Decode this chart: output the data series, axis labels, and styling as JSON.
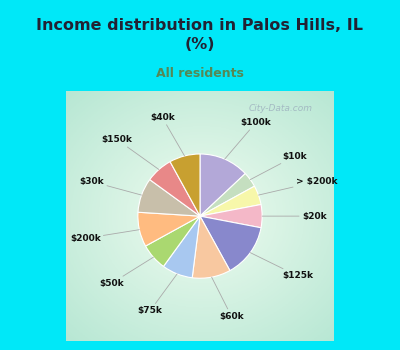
{
  "title": "Income distribution in Palos Hills, IL\n(%)",
  "subtitle": "All residents",
  "labels": [
    "$100k",
    "$10k",
    "> $200k",
    "$20k",
    "$125k",
    "$60k",
    "$75k",
    "$50k",
    "$200k",
    "$30k",
    "$150k",
    "$40k"
  ],
  "values": [
    13,
    4,
    5,
    6,
    14,
    10,
    8,
    7,
    9,
    9,
    7,
    8
  ],
  "colors": [
    "#b3a8d8",
    "#c5dfc0",
    "#f7f7aa",
    "#f4b8c8",
    "#8888cc",
    "#f8c8a0",
    "#a8c8f0",
    "#aad870",
    "#ffbb80",
    "#c8bfaa",
    "#e88888",
    "#c8a030"
  ],
  "bg_cyan": "#00e8f8",
  "bg_chart_center": "#f0faf0",
  "bg_chart_edge": "#c8ece0",
  "title_color": "#222233",
  "subtitle_color": "#558855",
  "watermark": "City-Data.com",
  "label_color": "#111111",
  "line_color": "#aaaaaa"
}
